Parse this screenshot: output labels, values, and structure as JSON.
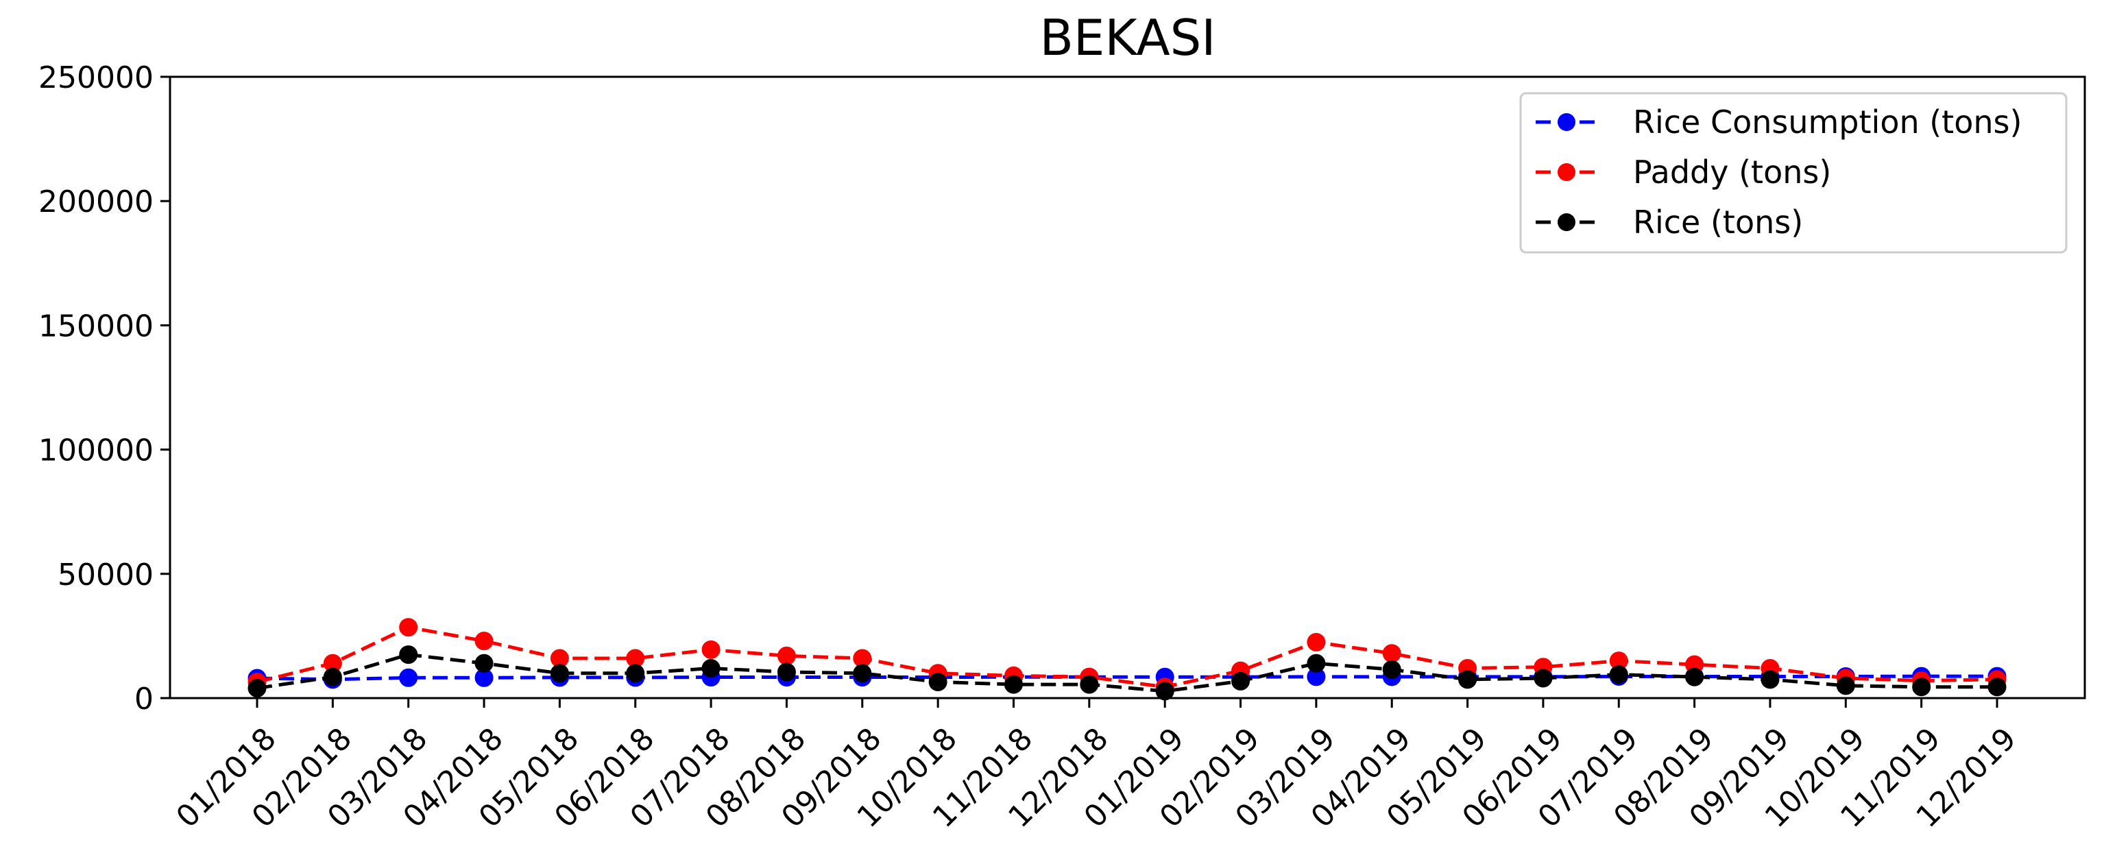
{
  "chart_data": {
    "type": "line",
    "title": "BEKASI",
    "xlabel": "",
    "ylabel": "",
    "categories": [
      "01/2018",
      "02/2018",
      "03/2018",
      "04/2018",
      "05/2018",
      "06/2018",
      "07/2018",
      "08/2018",
      "09/2018",
      "10/2018",
      "11/2018",
      "12/2018",
      "01/2019",
      "02/2019",
      "03/2019",
      "04/2019",
      "05/2019",
      "06/2019",
      "07/2019",
      "08/2019",
      "09/2019",
      "10/2019",
      "11/2019",
      "12/2019"
    ],
    "ylim": [
      0,
      250000
    ],
    "yticks": [
      "0",
      "50000",
      "100000",
      "150000",
      "200000",
      "250000"
    ],
    "ytick_values": [
      0,
      50000,
      100000,
      150000,
      200000,
      250000
    ],
    "grid": false,
    "legend_position": "top-right",
    "series": [
      {
        "name": "Rice Consumption (tons)",
        "color": "#0000ff",
        "linestyle": "dashed",
        "marker": "circle",
        "values": [
          8000,
          7500,
          8200,
          8200,
          8300,
          8300,
          8400,
          8400,
          8400,
          8400,
          8500,
          8500,
          8500,
          8500,
          8600,
          8600,
          8600,
          8600,
          8700,
          8700,
          8700,
          8700,
          8800,
          8800
        ]
      },
      {
        "name": "Paddy (tons)",
        "color": "#ff0000",
        "linestyle": "dashed",
        "marker": "circle",
        "values": [
          6500,
          14000,
          28500,
          23000,
          16000,
          16000,
          19500,
          17000,
          16000,
          10000,
          9000,
          8500,
          4500,
          11000,
          22500,
          18000,
          12000,
          12500,
          15000,
          13500,
          12000,
          8000,
          7000,
          7500
        ]
      },
      {
        "name": "Rice (tons)",
        "color": "#000000",
        "linestyle": "dashed",
        "marker": "circle",
        "values": [
          4000,
          8500,
          17500,
          14000,
          10000,
          10000,
          12000,
          10500,
          10000,
          6500,
          5500,
          5500,
          2800,
          6800,
          14000,
          11500,
          7500,
          8000,
          9500,
          8500,
          7500,
          5000,
          4500,
          4500
        ]
      }
    ]
  }
}
